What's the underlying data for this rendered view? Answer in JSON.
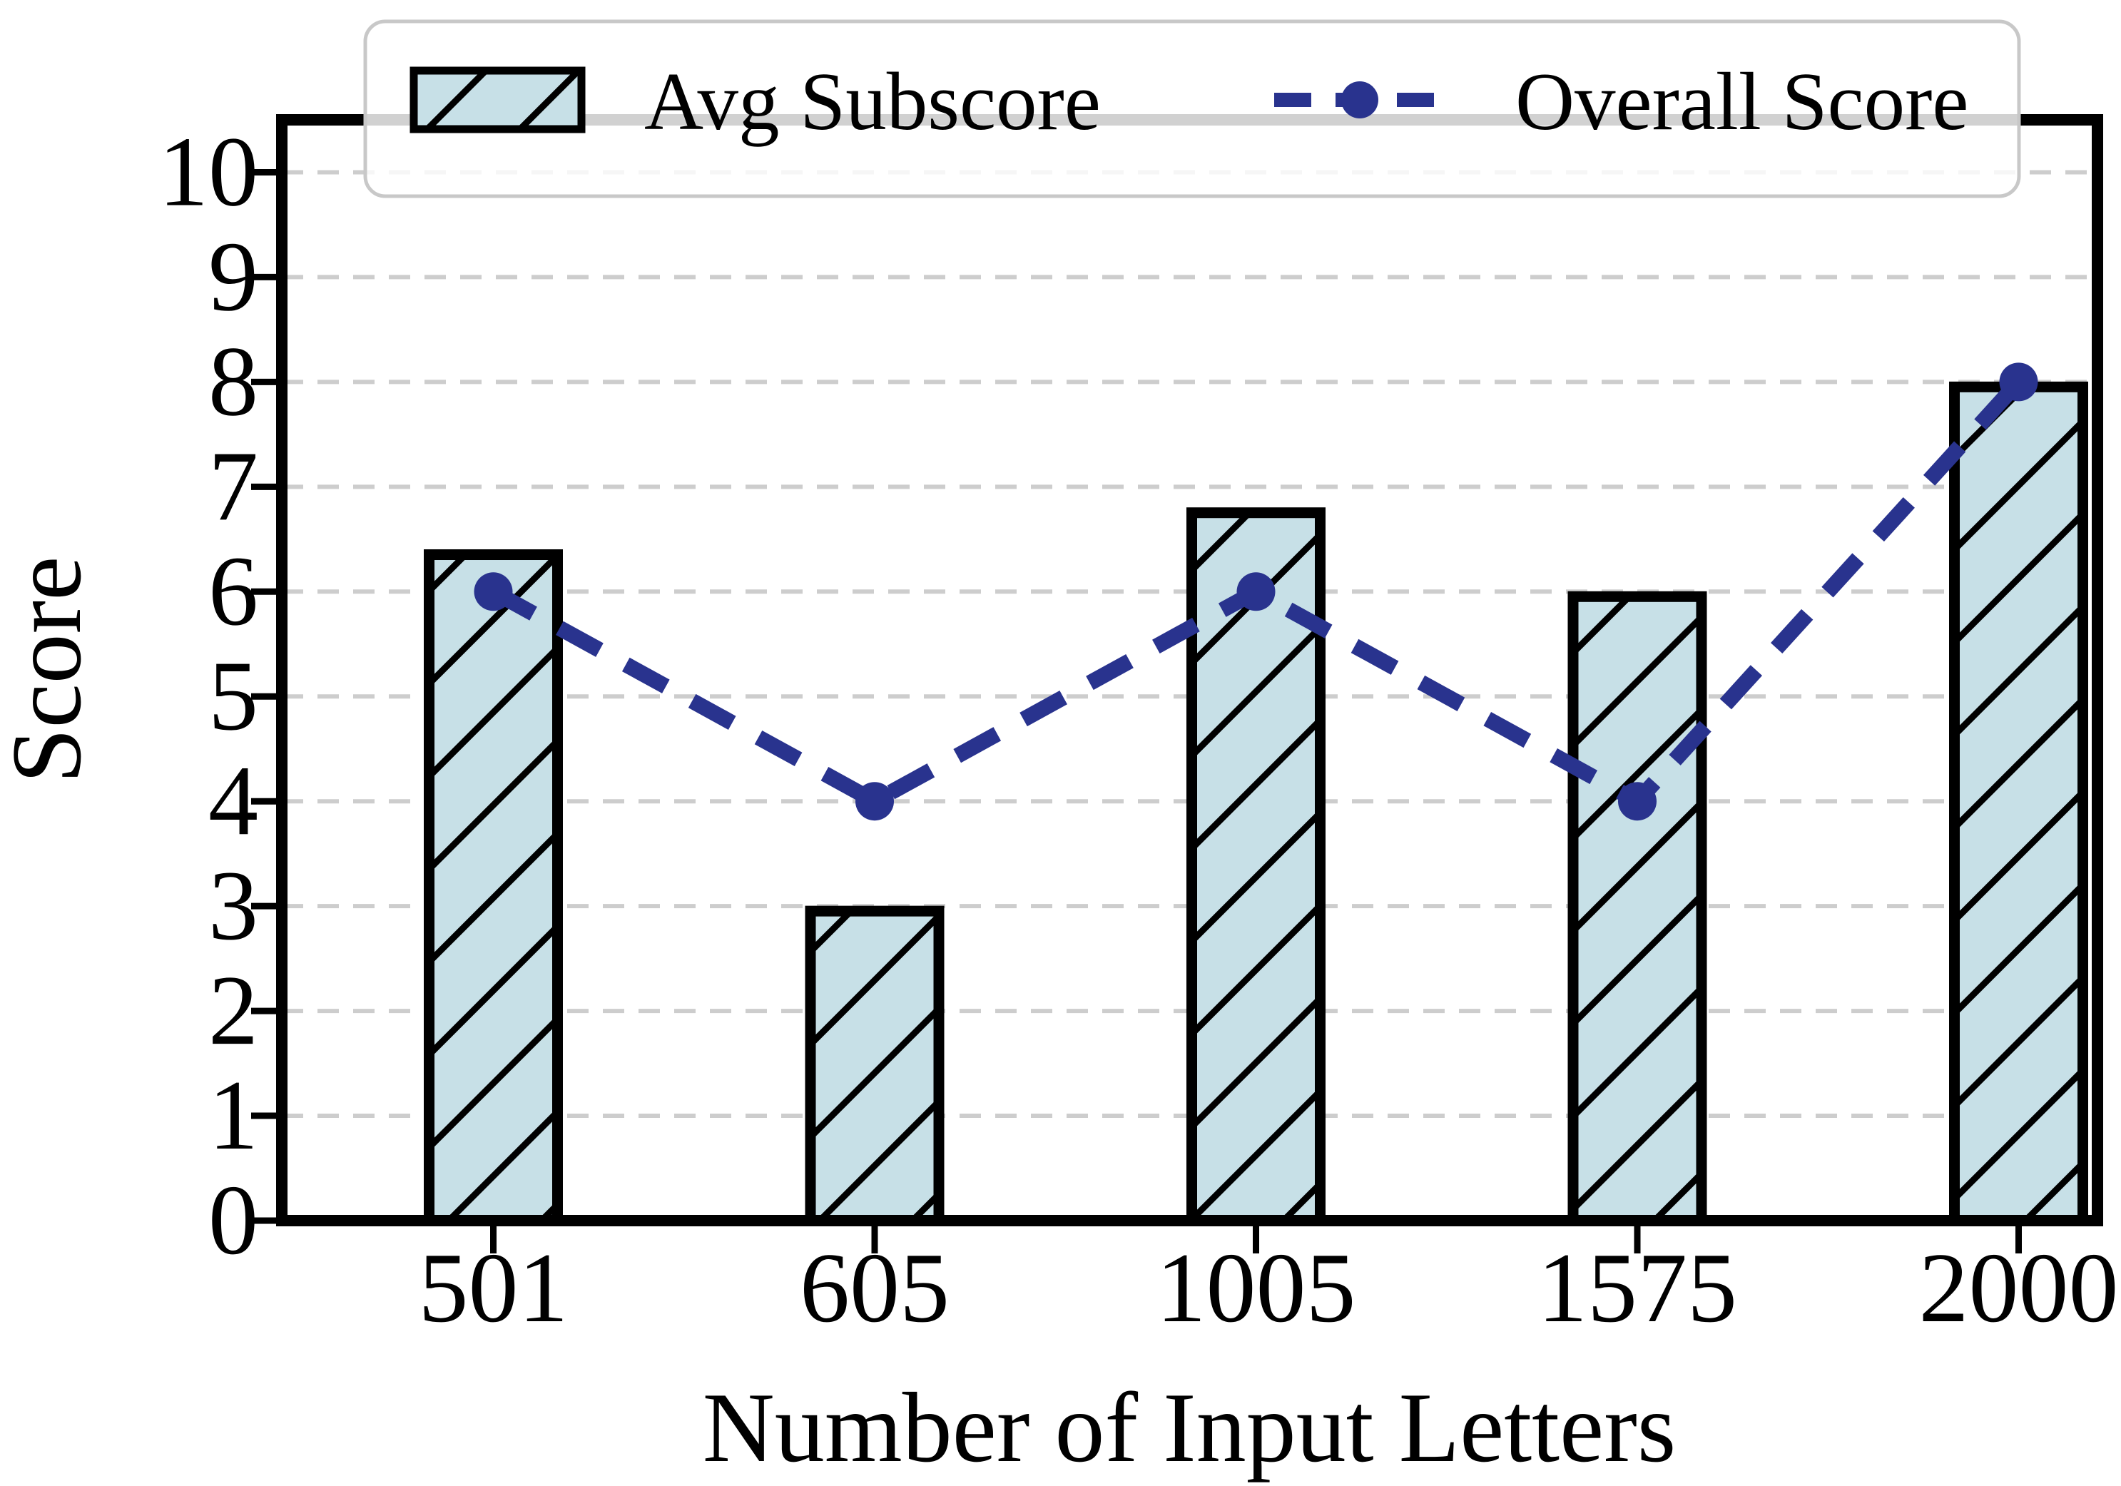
{
  "chart_data": {
    "type": "bar",
    "title": "",
    "categories": [
      "501",
      "605",
      "1005",
      "1575",
      "2000"
    ],
    "series": [
      {
        "name": "Avg Subscore",
        "kind": "bar",
        "values": [
          6.4,
          3.0,
          6.8,
          6.0,
          8.0
        ]
      },
      {
        "name": "Overall Score",
        "kind": "line",
        "values": [
          6,
          4,
          6,
          4,
          8
        ]
      }
    ],
    "xlabel": "Number of Input Letters",
    "ylabel": "Score",
    "ylim": [
      0,
      10.5
    ],
    "yticks": [
      0,
      1,
      2,
      3,
      4,
      5,
      6,
      7,
      8,
      9,
      10
    ],
    "grid": true,
    "legend_position": "top",
    "colors": {
      "bar_fill": "#c7e0e7",
      "bar_edge": "#000000",
      "hatch": "/",
      "line": "#29338e",
      "grid": "#cdcdcd",
      "legend_border": "#c8c8c8",
      "axis": "#000000"
    }
  }
}
